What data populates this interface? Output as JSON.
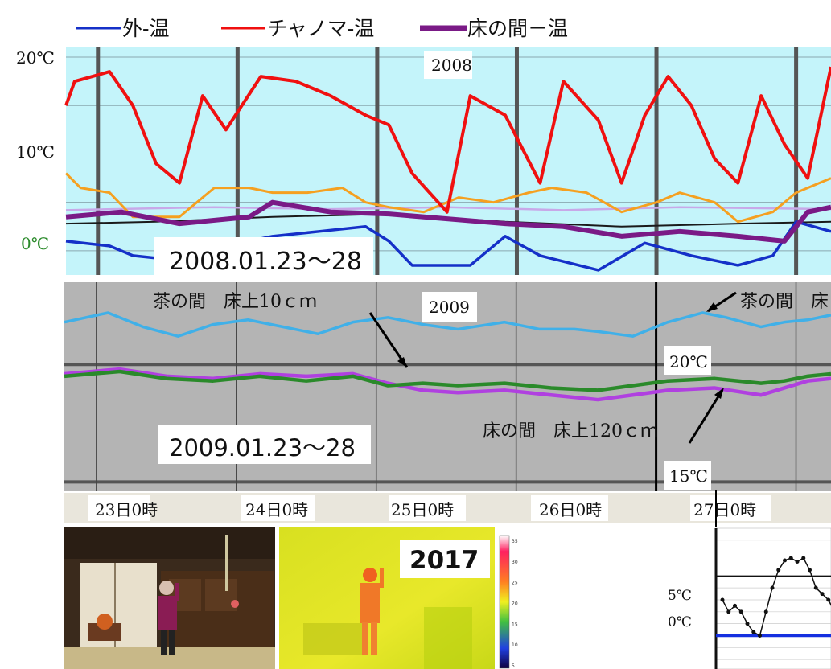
{
  "legend": {
    "outside": "外-温",
    "chanoma": "チャノマ-温",
    "tokonoma": "床の間－温"
  },
  "colors": {
    "outside": "#1530c8",
    "chanoma": "#f01010",
    "tokonoma": "#7a1a86",
    "orange": "#f5a020",
    "black": "#1a1a1a",
    "lavender": "#c8a8e8",
    "chart1_bg": "#c4f4fa",
    "chart2_bg": "#b4b4b4",
    "cyan_line": "#40b0e8",
    "green_line": "#2a8a2a",
    "magenta_line": "#b040e0",
    "axis_label_bg": "#e9e6dc",
    "zero_label": "#2a8a2a"
  },
  "chart_data": [
    {
      "type": "line",
      "year_label": "2008",
      "period_label": "2008.01.23～28",
      "y_ticks": [
        "20℃",
        "10℃",
        "0℃"
      ],
      "ylim": [
        -2.5,
        21
      ],
      "x_unit": "hours from 2008.01.23 00:00",
      "xlim": [
        -5.5,
        126
      ],
      "series": [
        {
          "name": "外-温",
          "x": [
            -5.5,
            2,
            6,
            14,
            22,
            30,
            38,
            46,
            50,
            54,
            64,
            70,
            76,
            86,
            94,
            102,
            110,
            116,
            120,
            126
          ],
          "values": [
            1,
            0.5,
            -0.5,
            -1,
            0.5,
            1.5,
            2,
            2.5,
            1,
            -1.5,
            -1.5,
            1.5,
            -0.5,
            -2,
            0.8,
            -0.5,
            -1.5,
            -0.5,
            3,
            2
          ]
        },
        {
          "name": "チャノマ-温",
          "x": [
            -5.5,
            -4,
            2,
            6,
            10,
            14,
            18,
            22,
            28,
            34,
            40,
            46,
            50,
            54,
            60,
            64,
            70,
            76,
            80,
            86,
            90,
            94,
            98,
            102,
            106,
            110,
            114,
            118,
            122,
            126
          ],
          "values": [
            15,
            17.5,
            18.5,
            15,
            9,
            7,
            16,
            12.5,
            18,
            17.5,
            16,
            14,
            13,
            8,
            4,
            16,
            14,
            7,
            17.5,
            13.5,
            7,
            14,
            18,
            15,
            9.5,
            7,
            16,
            11,
            7.5,
            19
          ]
        },
        {
          "name": "床の間－温",
          "x": [
            -5.5,
            4,
            14,
            26,
            30,
            40,
            50,
            60,
            70,
            80,
            90,
            100,
            110,
            118,
            122,
            126
          ],
          "values": [
            3.5,
            4,
            2.8,
            3.5,
            5,
            4,
            3.8,
            3.3,
            2.8,
            2.5,
            1.5,
            2,
            1.5,
            1,
            4,
            4.5
          ]
        },
        {
          "x": [
            -5.5,
            -3,
            2,
            6,
            14,
            20,
            26,
            30,
            36,
            42,
            46,
            50,
            56,
            62,
            68,
            74,
            78,
            84,
            90,
            96,
            100,
            106,
            110,
            116,
            120,
            126
          ],
          "values": [
            8,
            6.5,
            6,
            3.5,
            3.5,
            6.5,
            6.5,
            6,
            6,
            6.5,
            5,
            4.5,
            4,
            5.5,
            5,
            6,
            6.5,
            6,
            4,
            5,
            6,
            5,
            3,
            4,
            6,
            7.5
          ]
        },
        {
          "x": [
            -5.5,
            10,
            30,
            50,
            70,
            90,
            110,
            126
          ],
          "values": [
            2.8,
            3,
            3.5,
            3.8,
            3,
            2.5,
            2.8,
            3
          ]
        },
        {
          "x": [
            -5.5,
            20,
            40,
            60,
            80,
            100,
            126
          ],
          "values": [
            4.2,
            4.5,
            4.3,
            4.5,
            4.2,
            4.5,
            4.3
          ]
        }
      ]
    },
    {
      "type": "line",
      "year_label": "2009",
      "period_label": "2009.01.23～28",
      "y_ticks": [
        "20℃",
        "15℃"
      ],
      "ylim": [
        14.6,
        23.5
      ],
      "x_unit": "hours from 2009.01.23 00:00",
      "xlim": [
        -5.5,
        126
      ],
      "annotation_top": "茶の間　床上10ｃｍ",
      "annotation_top_right": "茶の間　床",
      "annotation_bottom": "床の間　床上120ｃｍ",
      "series": [
        {
          "name": "茶の間",
          "x": [
            -5.5,
            2,
            8,
            14,
            20,
            26,
            32,
            38,
            44,
            50,
            56,
            62,
            70,
            76,
            82,
            86,
            92,
            98,
            104,
            108,
            114,
            118,
            122,
            126
          ],
          "values": [
            21.8,
            22.2,
            21.6,
            21.2,
            21.7,
            21.9,
            21.6,
            21.3,
            21.8,
            22,
            21.7,
            21.5,
            21.8,
            21.5,
            21.5,
            21.4,
            21.2,
            21.8,
            22.2,
            22,
            21.6,
            21.8,
            21.9,
            22.1
          ]
        },
        {
          "name": "床の間",
          "x": [
            -5.5,
            4,
            12,
            20,
            28,
            36,
            44,
            50,
            56,
            62,
            70,
            78,
            86,
            92,
            98,
            106,
            114,
            118,
            122,
            126
          ],
          "values": [
            19.6,
            19.8,
            19.5,
            19.4,
            19.6,
            19.5,
            19.6,
            19.2,
            18.9,
            18.8,
            18.9,
            18.7,
            18.5,
            18.7,
            18.9,
            19,
            18.7,
            19,
            19.3,
            19.4
          ]
        },
        {
          "x": [
            -5.5,
            4,
            12,
            20,
            28,
            36,
            44,
            50,
            56,
            62,
            70,
            78,
            86,
            92,
            98,
            106,
            114,
            118,
            122,
            126
          ],
          "values": [
            19.5,
            19.7,
            19.4,
            19.3,
            19.5,
            19.3,
            19.5,
            19.1,
            19.2,
            19.1,
            19.2,
            19,
            18.9,
            19.1,
            19.3,
            19.4,
            19.2,
            19.3,
            19.5,
            19.6
          ]
        }
      ]
    },
    {
      "type": "line",
      "y_ticks": [
        "5℃",
        "0℃"
      ],
      "ylim": [
        -2.8,
        9
      ],
      "series": [
        {
          "x": [
            0,
            1,
            2,
            3,
            4,
            5,
            6,
            7,
            8,
            9,
            10,
            11,
            12,
            13,
            14,
            15,
            16,
            17,
            18,
            19,
            20
          ],
          "values": [
            3,
            2,
            2.5,
            2,
            1,
            0.3,
            0,
            2,
            4,
            5.5,
            6.3,
            6.5,
            6.2,
            6.5,
            5.5,
            4,
            3.5,
            3,
            2,
            1.5,
            1
          ]
        },
        {
          "x": [
            0,
            20
          ],
          "values": [
            0,
            0
          ]
        }
      ]
    }
  ],
  "date_axis": {
    "labels": [
      "23日0時",
      "24日0時",
      "25日0時",
      "26日0時",
      "27日0時"
    ]
  },
  "thermal": {
    "year_label": "2017",
    "scale_ticks": [
      "35",
      "30",
      "25",
      "20",
      "15",
      "10",
      "5"
    ]
  }
}
